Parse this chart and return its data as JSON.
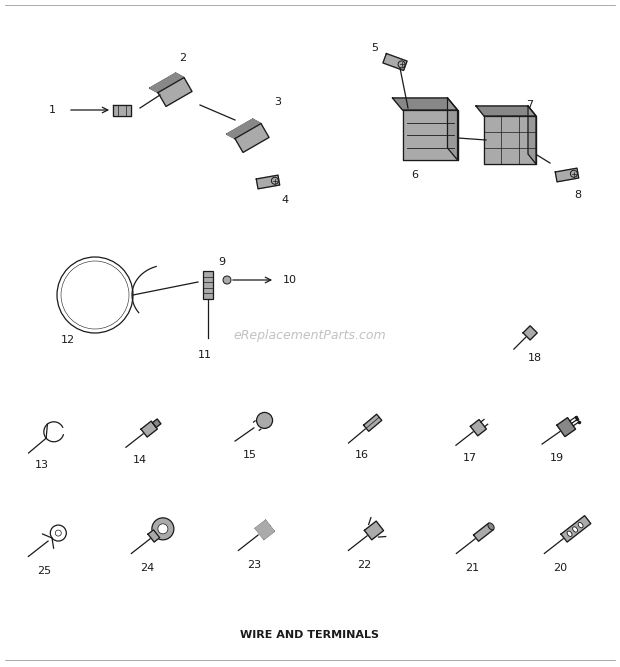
{
  "title": "WIRE AND TERMINALS",
  "bg_color": "#ffffff",
  "text_color": "#1a1a1a",
  "line_color": "#1a1a1a",
  "watermark": "eReplacementParts.com",
  "watermark_color": "#bbbbbb",
  "fig_width": 6.2,
  "fig_height": 6.67,
  "dpi": 100,
  "title_fontsize": 8.0,
  "label_fontsize": 8.0
}
